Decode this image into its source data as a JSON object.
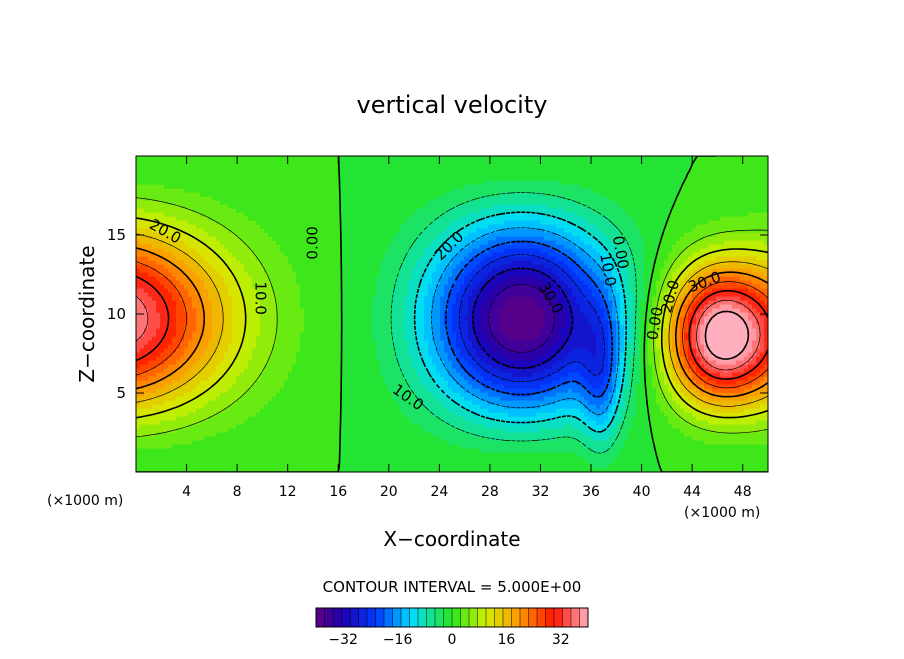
{
  "chart_data": {
    "type": "contour",
    "title": "vertical velocity",
    "xlabel": "X−coordinate",
    "ylabel": "Z−coordinate",
    "x_unit_left": "(×1000 m)",
    "x_unit_right": "(×1000 m)",
    "xlim": [
      0,
      50
    ],
    "ylim": [
      0,
      20
    ],
    "xticks": [
      4,
      8,
      12,
      16,
      20,
      24,
      28,
      32,
      36,
      40,
      44,
      48
    ],
    "yticks": [
      5,
      10,
      15
    ],
    "contour_interval_text": "CONTOUR INTERVAL = 5.000E+00",
    "contour_interval": 5,
    "colorbar": {
      "min": -40,
      "max": 40,
      "ticks": [
        -32,
        -16,
        0,
        16,
        32
      ],
      "tick_labels": [
        "−32",
        "−16",
        "0",
        "16",
        "32"
      ]
    },
    "field_features": [
      {
        "kind": "max",
        "x": 0,
        "z": 9.5,
        "value": 36
      },
      {
        "kind": "min",
        "x": 30.5,
        "z": 9,
        "value": -37
      },
      {
        "kind": "max",
        "x": 46,
        "z": 8,
        "value": 38
      }
    ],
    "contour_labels": [
      {
        "text": "20.0",
        "x": 2.3,
        "z": 15.2,
        "angle": 30
      },
      {
        "text": "10.0",
        "x": 9.8,
        "z": 11.0,
        "angle": 90
      },
      {
        "text": "0.00",
        "x": 14.0,
        "z": 14.5,
        "angle": -90
      },
      {
        "text": "20.0",
        "x": 24.8,
        "z": 14.3,
        "angle": -45
      },
      {
        "text": "30.0",
        "x": 32.8,
        "z": 11.0,
        "angle": 60
      },
      {
        "text": "10.0",
        "x": 21.5,
        "z": 4.7,
        "angle": 35
      },
      {
        "text": "10.0",
        "x": 37.3,
        "z": 12.8,
        "angle": 80
      },
      {
        "text": "0.00",
        "x": 38.3,
        "z": 13.9,
        "angle": 80
      },
      {
        "text": "30.0",
        "x": 45.0,
        "z": 12.0,
        "angle": -20
      },
      {
        "text": "20.0",
        "x": 42.3,
        "z": 11.1,
        "angle": -75
      },
      {
        "text": "0.00",
        "x": 41.1,
        "z": 9.4,
        "angle": -80
      }
    ]
  }
}
